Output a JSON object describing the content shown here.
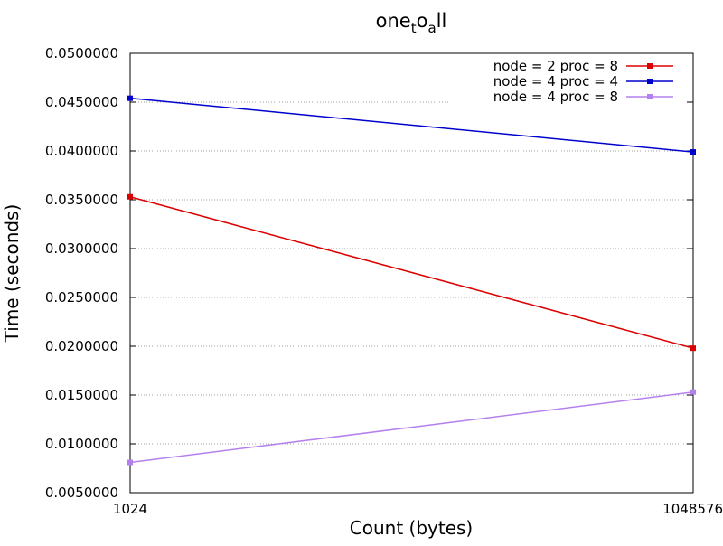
{
  "chart_data": {
    "type": "line",
    "title": "onetoall",
    "title_parts": {
      "base": "one",
      "sub1": "t",
      "mid": "o",
      "sub2": "a",
      "tail": "ll"
    },
    "xlabel": "Count (bytes)",
    "ylabel": "Time (seconds)",
    "x": [
      1024,
      1048576
    ],
    "x_tick_labels": [
      "1024",
      "1048576"
    ],
    "ylim": [
      0.005,
      0.05
    ],
    "y_ticks": [
      0.005,
      0.01,
      0.015,
      0.02,
      0.025,
      0.03,
      0.035,
      0.04,
      0.045,
      0.05
    ],
    "y_tick_labels": [
      "0.0050000",
      "0.0100000",
      "0.0150000",
      "0.0200000",
      "0.0250000",
      "0.0300000",
      "0.0350000",
      "0.0400000",
      "0.0450000",
      "0.0500000"
    ],
    "grid": true,
    "legend_position": "top-right",
    "series": [
      {
        "name": "node = 2 proc = 8",
        "color": "#dd0000",
        "values": [
          0.0353,
          0.0198
        ]
      },
      {
        "name": "node = 4 proc = 4",
        "color": "#0000cc",
        "values": [
          0.0454,
          0.0399
        ]
      },
      {
        "name": "node = 4 proc = 8",
        "color": "#b480ee",
        "values": [
          0.0081,
          0.0153
        ]
      }
    ]
  }
}
